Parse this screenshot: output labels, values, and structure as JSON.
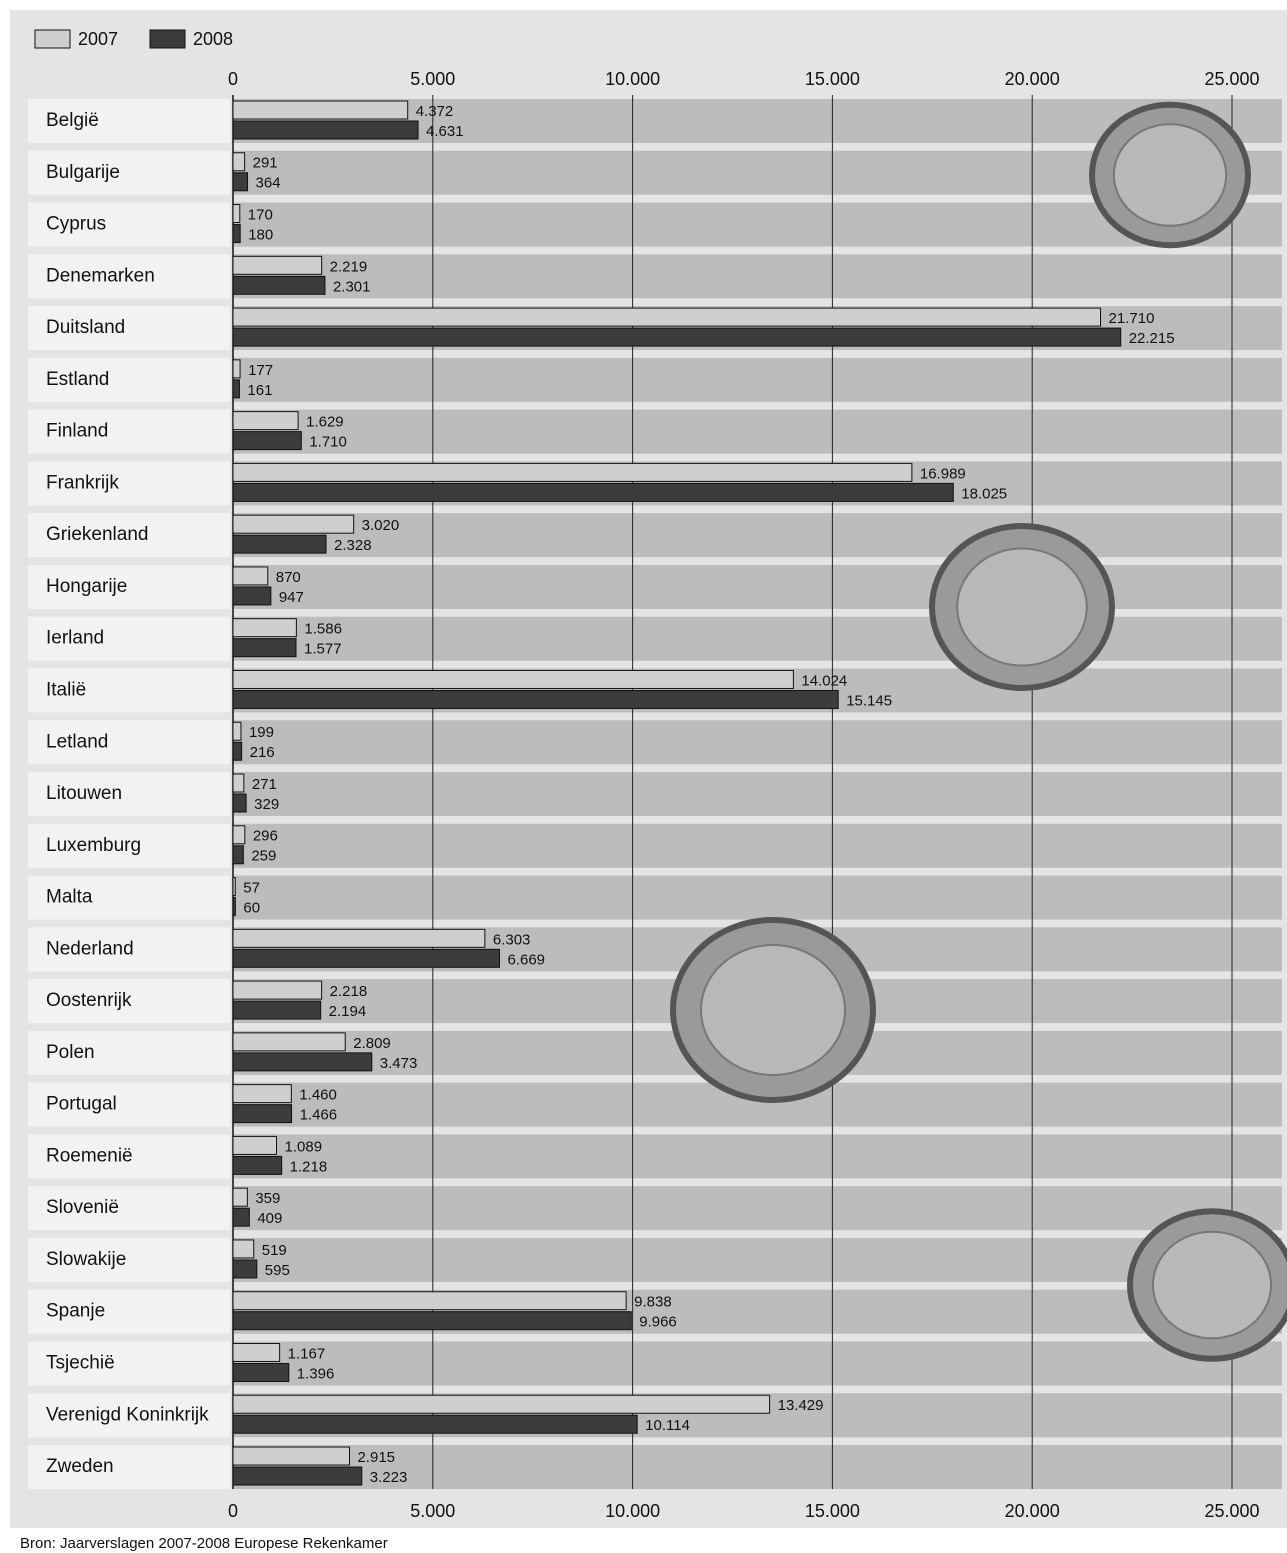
{
  "chart_data": {
    "type": "hbar",
    "categories": [
      "België",
      "Bulgarije",
      "Cyprus",
      "Denemarken",
      "Duitsland",
      "Estland",
      "Finland",
      "Frankrijk",
      "Griekenland",
      "Hongarije",
      "Ierland",
      "Italië",
      "Letland",
      "Litouwen",
      "Luxemburg",
      "Malta",
      "Nederland",
      "Oostenrijk",
      "Polen",
      "Portugal",
      "Roemenië",
      "Slovenië",
      "Slowakije",
      "Spanje",
      "Tsjechië",
      "Verenigd Koninkrijk",
      "Zweden"
    ],
    "series": [
      {
        "name": "2007",
        "color": "#cfcfcf",
        "values": [
          4372,
          291,
          170,
          2219,
          21710,
          177,
          1629,
          16989,
          3020,
          870,
          1586,
          14024,
          199,
          271,
          296,
          57,
          6303,
          2218,
          2809,
          1460,
          1089,
          359,
          519,
          9838,
          1167,
          13429,
          2915
        ],
        "value_labels": [
          "4.372",
          "291",
          "170",
          "2.219",
          "21.710",
          "177",
          "1.629",
          "16.989",
          "3.020",
          "870",
          "1.586",
          "14.024",
          "199",
          "271",
          "296",
          "57",
          "6.303",
          "2.218",
          "2.809",
          "1.460",
          "1.089",
          "359",
          "519",
          "9.838",
          "1.167",
          "13.429",
          "2.915"
        ]
      },
      {
        "name": "2008",
        "color": "#3c3c3c",
        "values": [
          4631,
          364,
          180,
          2301,
          22215,
          161,
          1710,
          18025,
          2328,
          947,
          1577,
          15145,
          216,
          329,
          259,
          60,
          6669,
          2194,
          3473,
          1466,
          1218,
          409,
          595,
          9966,
          1396,
          10114,
          3223
        ],
        "value_labels": [
          "4.631",
          "364",
          "180",
          "2.301",
          "22.215",
          "161",
          "1.710",
          "18.025",
          "2.328",
          "947",
          "1.577",
          "15.145",
          "216",
          "329",
          "259",
          "60",
          "6.669",
          "2.194",
          "3.473",
          "1.466",
          "1.218",
          "409",
          "595",
          "9.966",
          "1.396",
          "10.114",
          "3.223"
        ]
      }
    ],
    "xlim": [
      0,
      25000
    ],
    "xticks": [
      0,
      {
        "value": 5000,
        "label": "5.000"
      },
      {
        "value": 10000,
        "label": "10.000"
      },
      {
        "value": 15000,
        "label": "15.000"
      },
      {
        "value": 20000,
        "label": "20.000"
      },
      {
        "value": 25000,
        "label": "25.000"
      }
    ],
    "grid": true,
    "legend": "top-left",
    "source": "Bron: Jaarverslagen 2007-2008 Europese Rekenkamer"
  }
}
